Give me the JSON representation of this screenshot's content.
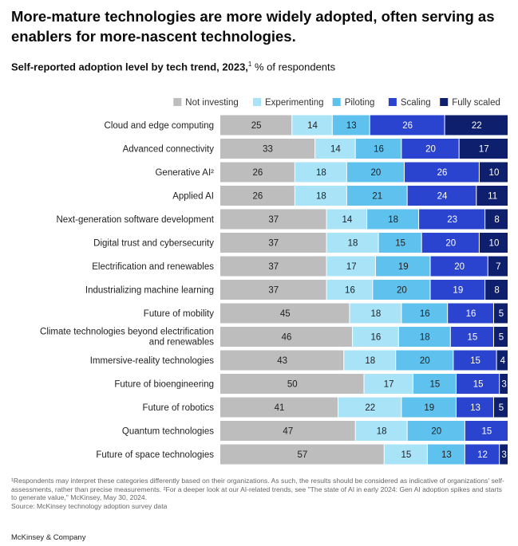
{
  "header": {
    "title": "More-mature technologies are more widely adopted, often serving as enablers for more-nascent technologies.",
    "subtitle_bold": "Self-reported adoption level by tech trend, 2023,",
    "subtitle_sup": "1",
    "subtitle_rest": " % of respondents"
  },
  "chart_data": {
    "type": "bar",
    "orientation": "horizontal",
    "stacked": true,
    "unit": "% of respondents",
    "categories": [
      "Cloud and edge computing",
      "Advanced connectivity",
      "Generative AI²",
      "Applied AI",
      "Next-generation software development",
      "Digital trust and cybersecurity",
      "Electrification and renewables",
      "Industrializing machine learning",
      "Future of mobility",
      "Climate technologies beyond electrification and renewables",
      "Immersive-reality technologies",
      "Future of bioengineering",
      "Future of robotics",
      "Quantum technologies",
      "Future of space technologies"
    ],
    "series": [
      {
        "name": "Not investing",
        "color": "#bdbdbd",
        "label_color": "#222222",
        "values": [
          25,
          33,
          26,
          26,
          37,
          37,
          37,
          37,
          45,
          46,
          43,
          50,
          41,
          47,
          57
        ]
      },
      {
        "name": "Experimenting",
        "color": "#a8e3f8",
        "label_color": "#222222",
        "values": [
          14,
          14,
          18,
          18,
          14,
          18,
          17,
          16,
          18,
          16,
          18,
          17,
          22,
          18,
          15
        ]
      },
      {
        "name": "Piloting",
        "color": "#5ec1ee",
        "label_color": "#222222",
        "values": [
          13,
          16,
          20,
          21,
          18,
          15,
          19,
          20,
          16,
          18,
          20,
          15,
          19,
          20,
          13
        ]
      },
      {
        "name": "Scaling",
        "color": "#2b44cf",
        "label_color": "#ffffff",
        "values": [
          26,
          20,
          26,
          24,
          23,
          20,
          20,
          19,
          16,
          15,
          15,
          15,
          13,
          15,
          12
        ]
      },
      {
        "name": "Fully scaled",
        "color": "#0e1f6e",
        "label_color": "#ffffff",
        "values": [
          22,
          17,
          10,
          11,
          8,
          10,
          7,
          8,
          5,
          5,
          4,
          3,
          5,
          null,
          3
        ]
      }
    ],
    "xlim": [
      0,
      100
    ],
    "legend_position": "top-right",
    "grid": false
  },
  "footnotes": {
    "note1": "¹Respondents may interpret these categories differently based on their organizations. As such, the results should be considered as indicative of organizations' self-assessments, rather than precise measurements. ²For a deeper look at our AI-related trends, see \"The state of AI in early 2024: Gen AI adoption spikes and starts to generate value,\" McKinsey, May 30, 2024.",
    "source": "Source: McKinsey technology adoption survey data"
  },
  "brand": "McKinsey & Company"
}
